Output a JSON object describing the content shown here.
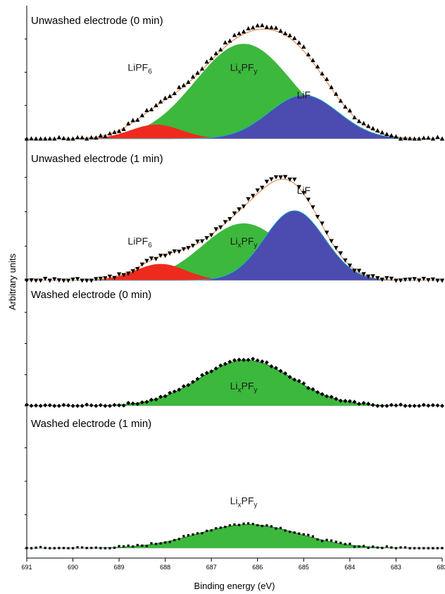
{
  "chart_data": {
    "type": "line",
    "xlabel": "Binding energy (eV)",
    "ylabel": "Arbitrary units",
    "xlim": [
      691,
      682
    ],
    "x_reversed": true,
    "xticks": [
      "691",
      "690",
      "689",
      "688",
      "687",
      "686",
      "685",
      "684",
      "683",
      "682"
    ],
    "colors": {
      "LixPFy": "#3cb83c",
      "LiF": "#4b4bb0",
      "LiPF6": "#ee2a1e",
      "envelope": "#e07a3a",
      "component_line": "#1ab0c0",
      "baseline": "#cc33cc"
    },
    "panels": [
      {
        "title": "Unwashed electrode (0 min)",
        "marker": "triangle-up",
        "components": [
          {
            "name": "LiPF6",
            "center": 688.2,
            "width": 0.55,
            "amp": 0.13
          },
          {
            "name": "LixPFy",
            "center": 686.3,
            "width": 1.05,
            "amp": 0.87
          },
          {
            "name": "LiF",
            "center": 685.0,
            "width": 0.75,
            "amp": 0.4
          }
        ],
        "envelope_peak": 1.0,
        "annotations": [
          {
            "base": "LiPF",
            "sub": "6",
            "label_x": 688.55,
            "label_level": 0.7
          },
          {
            "base": "Li",
            "sub": "x",
            "base2": "PF",
            "sub2": "y",
            "label_x": 686.3,
            "label_level": 0.7
          },
          {
            "base": "LiF",
            "label_x": 685.0,
            "label_level": 0.45
          }
        ]
      },
      {
        "title": "Unwashed electrode (1 min)",
        "marker": "triangle-down",
        "components": [
          {
            "name": "LiPF6",
            "center": 688.1,
            "width": 0.55,
            "amp": 0.13
          },
          {
            "name": "LixPFy",
            "center": 686.3,
            "width": 0.9,
            "amp": 0.45
          },
          {
            "name": "LiF",
            "center": 685.2,
            "width": 0.65,
            "amp": 0.55
          }
        ],
        "envelope_peak": 0.8,
        "annotations": [
          {
            "base": "LiPF",
            "sub": "6",
            "label_x": 688.55,
            "label_level": 0.35
          },
          {
            "base": "Li",
            "sub": "x",
            "base2": "PF",
            "sub2": "y",
            "label_x": 686.3,
            "label_level": 0.35
          },
          {
            "base": "LiF",
            "label_x": 685.0,
            "label_level": 0.75
          }
        ]
      },
      {
        "title": "Washed electrode (0 min)",
        "marker": "diamond",
        "components": [
          {
            "name": "LixPFy",
            "center": 686.25,
            "width": 1.0,
            "amp": 0.6
          }
        ],
        "envelope_peak": 0.6,
        "annotations": [
          {
            "base": "Li",
            "sub": "x",
            "base2": "PF",
            "sub2": "y",
            "label_x": 686.3,
            "label_level": 0.33
          }
        ]
      },
      {
        "title": "Washed electrode (1 min)",
        "marker": "square",
        "components": [
          {
            "name": "LixPFy",
            "center": 686.2,
            "width": 1.1,
            "amp": 0.28
          }
        ],
        "envelope_peak": 0.28,
        "annotations": [
          {
            "base": "Li",
            "sub": "x",
            "base2": "PF",
            "sub2": "y",
            "label_x": 686.3,
            "label_level": 0.62
          }
        ]
      }
    ]
  }
}
